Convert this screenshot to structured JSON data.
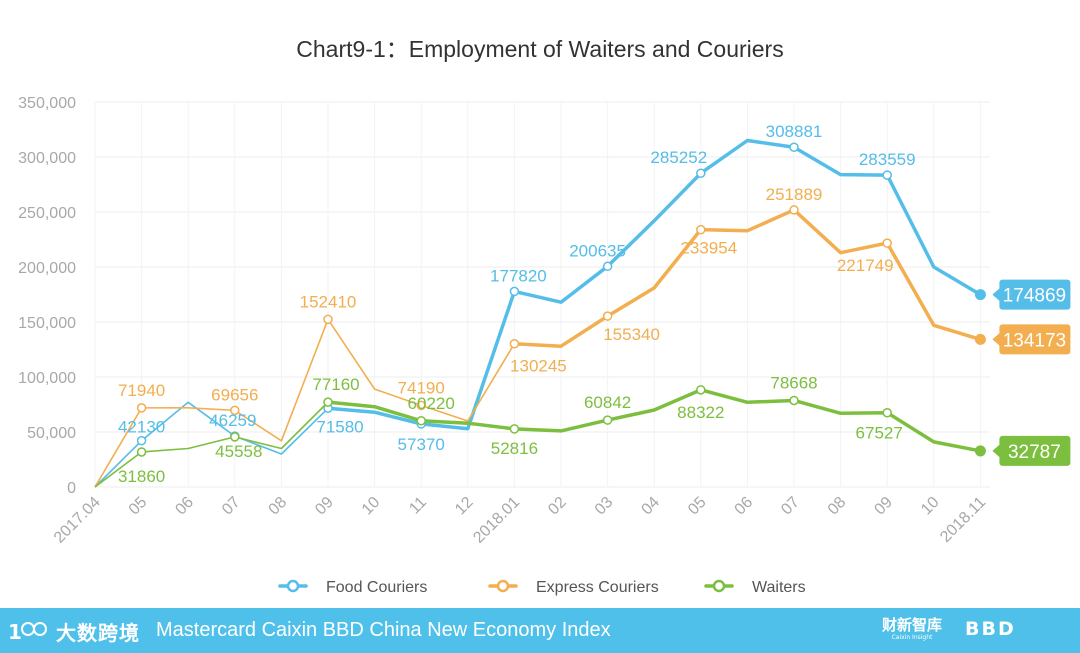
{
  "chart_data": {
    "type": "line",
    "title": "Chart9-1：Employment of Waiters and Couriers",
    "categories": [
      "2017.04",
      "05",
      "06",
      "07",
      "08",
      "09",
      "10",
      "11",
      "12",
      "2018.01",
      "02",
      "03",
      "04",
      "05",
      "06",
      "07",
      "08",
      "09",
      "10",
      "2018.11"
    ],
    "yticks": [
      "0",
      "50,000",
      "100,000",
      "150,000",
      "200,000",
      "250,000",
      "300,000",
      "350,000"
    ],
    "ylim": [
      0,
      350000
    ],
    "series": [
      {
        "name": "Food Couriers",
        "color": "#54bde8",
        "values": [
          0,
          42130,
          77000,
          46259,
          30000,
          71580,
          68000,
          57370,
          53000,
          177820,
          168000,
          200635,
          242000,
          285252,
          315000,
          308881,
          284000,
          283559,
          200000,
          174869
        ],
        "markers": [
          1,
          3,
          5,
          7,
          9,
          11,
          13,
          15,
          17
        ],
        "thin_until": 5,
        "labels": [
          {
            "i": 1,
            "text": "42130"
          },
          {
            "i": 3,
            "text": "46259"
          },
          {
            "i": 5,
            "text": "71580"
          },
          {
            "i": 7,
            "text": "57370"
          },
          {
            "i": 9,
            "text": "177820"
          },
          {
            "i": 11,
            "text": "200635"
          },
          {
            "i": 13,
            "text": "285252"
          },
          {
            "i": 15,
            "text": "308881"
          },
          {
            "i": 17,
            "text": "283559"
          }
        ],
        "end_value": "174869"
      },
      {
        "name": "Express Couriers",
        "color": "#f2ae4f",
        "values": [
          0,
          71940,
          72000,
          69656,
          42000,
          152410,
          89000,
          74190,
          60000,
          130245,
          128000,
          155340,
          181000,
          233954,
          233000,
          251889,
          213000,
          221749,
          147000,
          134173
        ],
        "markers": [
          1,
          3,
          5,
          7,
          9,
          11,
          13,
          15,
          17
        ],
        "thin_until": 9,
        "labels": [
          {
            "i": 1,
            "text": "71940"
          },
          {
            "i": 3,
            "text": "69656"
          },
          {
            "i": 5,
            "text": "152410"
          },
          {
            "i": 7,
            "text": "74190"
          },
          {
            "i": 9,
            "text": "130245"
          },
          {
            "i": 11,
            "text": "155340"
          },
          {
            "i": 13,
            "text": "233954"
          },
          {
            "i": 15,
            "text": "251889"
          },
          {
            "i": 17,
            "text": "221749"
          }
        ],
        "end_value": "134173"
      },
      {
        "name": "Waiters",
        "color": "#7cbf3f",
        "values": [
          0,
          31860,
          35000,
          45558,
          35000,
          77160,
          73000,
          60220,
          58000,
          52816,
          51000,
          60842,
          70000,
          88322,
          77000,
          78668,
          67000,
          67527,
          41000,
          32787
        ],
        "markers": [
          1,
          3,
          5,
          7,
          9,
          11,
          13,
          15,
          17
        ],
        "thin_until": 5,
        "labels": [
          {
            "i": 1,
            "text": "31860"
          },
          {
            "i": 3,
            "text": "45558"
          },
          {
            "i": 5,
            "text": "77160"
          },
          {
            "i": 7,
            "text": "60220"
          },
          {
            "i": 9,
            "text": "52816"
          },
          {
            "i": 11,
            "text": "60842"
          },
          {
            "i": 13,
            "text": "88322"
          },
          {
            "i": 15,
            "text": "78668"
          },
          {
            "i": 17,
            "text": "67527"
          }
        ],
        "end_value": "32787"
      }
    ],
    "legend_position": "bottom"
  },
  "footer": {
    "logo_left": "大数跨境",
    "title": "Mastercard Caixin BBD China New Economy Index",
    "logo_right_main": "财新智库",
    "logo_right_sub": "Caixin Insight",
    "logo_bbd": "BBD"
  },
  "colors": {
    "footer_bg": "#4fc0ea",
    "grid": "#ececec",
    "axis_text": "#9e9e9e",
    "title_text": "#333333"
  }
}
